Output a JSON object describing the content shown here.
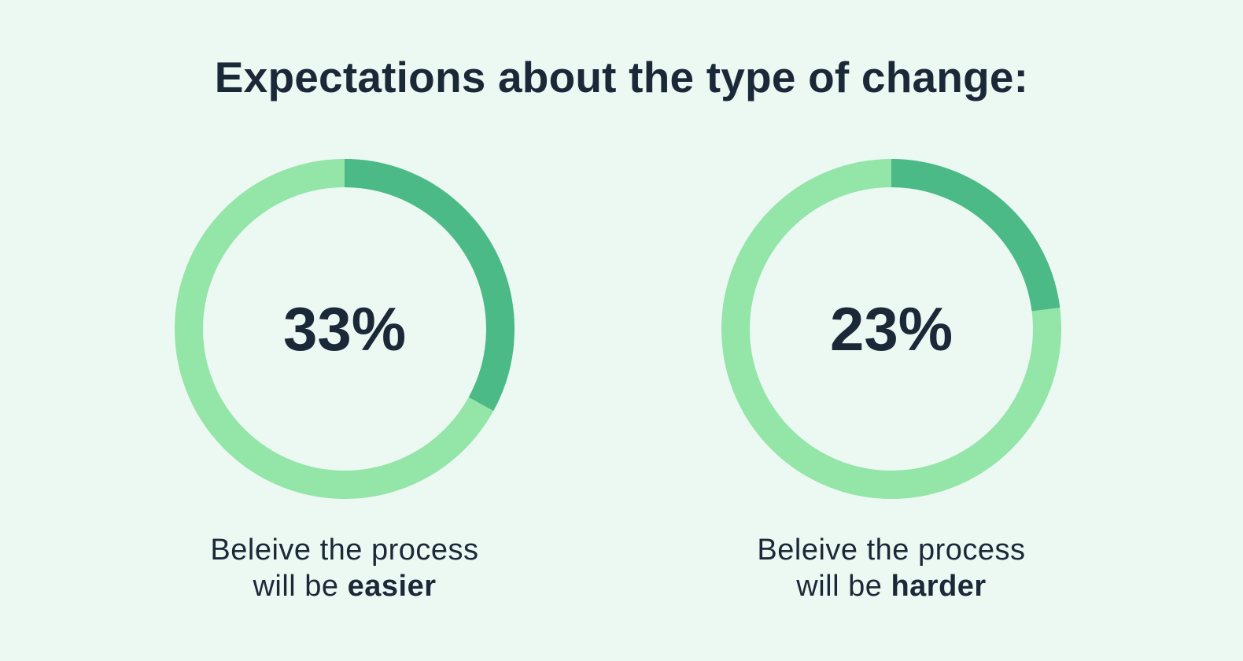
{
  "title": "Expectations about the type of change:",
  "colors": {
    "background": "#ecf8f2",
    "track": "#93e5a8",
    "value": "#4bba86",
    "text": "#1b2838"
  },
  "chart_data": [
    {
      "type": "pie",
      "value": 33,
      "max": 100,
      "center_label": "33%",
      "caption_line1": "Beleive the process",
      "caption_line2_prefix": "will be ",
      "caption_line2_emphasis": "easier"
    },
    {
      "type": "pie",
      "value": 23,
      "max": 100,
      "center_label": "23%",
      "caption_line1": "Beleive the process",
      "caption_line2_prefix": "will be ",
      "caption_line2_emphasis": "harder"
    }
  ]
}
